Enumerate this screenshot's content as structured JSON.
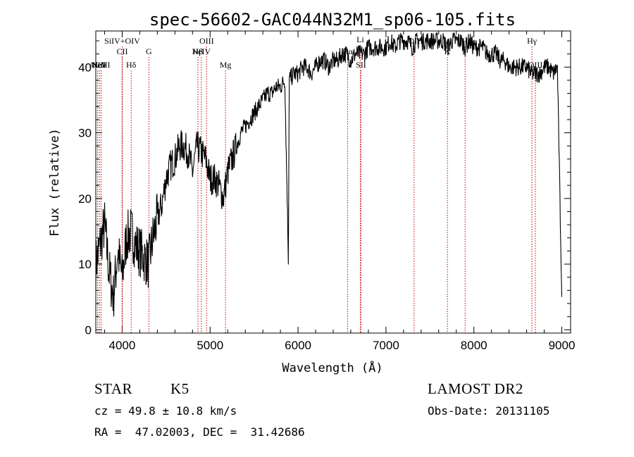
{
  "chart_data": {
    "type": "line",
    "title": "spec-56602-GAC044N32M1_sp06-105.fits",
    "xlabel": "Wavelength (Å)",
    "ylabel": "Flux (relative)",
    "xlim": [
      3700,
      9100
    ],
    "ylim": [
      -0.5,
      45.5
    ],
    "x_ticks": [
      4000,
      5000,
      6000,
      7000,
      8000,
      9000
    ],
    "y_ticks": [
      0,
      10,
      20,
      30,
      40
    ],
    "grid": false,
    "series": [
      {
        "x": [
          3700,
          3750,
          3800,
          3850,
          3900,
          3950,
          4000,
          4050,
          4100,
          4150,
          4200,
          4250,
          4300,
          4350,
          4400,
          4450,
          4500,
          4550,
          4600,
          4650,
          4700,
          4750,
          4800,
          4850,
          4900,
          4950,
          5000,
          5050,
          5100,
          5150,
          5200,
          5250,
          5300,
          5350,
          5400,
          5450,
          5500,
          5550,
          5600,
          5650,
          5700,
          5750,
          5800,
          5850,
          5890,
          5900,
          5950,
          6000,
          6050,
          6100,
          6150,
          6200,
          6250,
          6300,
          6350,
          6400,
          6450,
          6500,
          6550,
          6600,
          6650,
          6700,
          6750,
          6800,
          6850,
          6900,
          6950,
          7000,
          7050,
          7100,
          7150,
          7200,
          7250,
          7300,
          7350,
          7400,
          7450,
          7500,
          7550,
          7600,
          7650,
          7700,
          7750,
          7800,
          7850,
          7900,
          7950,
          8000,
          8050,
          8100,
          8150,
          8200,
          8250,
          8300,
          8350,
          8400,
          8450,
          8500,
          8550,
          8600,
          8650,
          8700,
          8750,
          8800,
          8850,
          8900,
          8950,
          9000
        ],
        "y": [
          10,
          13,
          16,
          9,
          5,
          12,
          8,
          14,
          15,
          13,
          12,
          11,
          10,
          14,
          17,
          19,
          23,
          25,
          26,
          28,
          28,
          27,
          24,
          28,
          27,
          26,
          23,
          23,
          22,
          20,
          24,
          26,
          28,
          30,
          31,
          32,
          33,
          34,
          35,
          36,
          36,
          37,
          37,
          38,
          11,
          38,
          39,
          39,
          40,
          40,
          39,
          40,
          41,
          41,
          40,
          41,
          41,
          42,
          42,
          41,
          42,
          42,
          42,
          43,
          43,
          43,
          43,
          43,
          44,
          43,
          44,
          44,
          44,
          43,
          44,
          44,
          44,
          44,
          44,
          44,
          44,
          43,
          44,
          44,
          44,
          43,
          44,
          43,
          43,
          43,
          42,
          42,
          42,
          41,
          41,
          40,
          40,
          40,
          40,
          40,
          39,
          39,
          39,
          40,
          40,
          39,
          40,
          5
        ]
      }
    ],
    "lines": [
      {
        "label": "AlIII",
        "x": 3720,
        "row": 3
      },
      {
        "label": "NeV",
        "x": 3740,
        "row": 3
      },
      {
        "label": "NeIII",
        "x": 3760,
        "row": 3
      },
      {
        "label": "SiIV+OIV",
        "x": 4000,
        "row": 1
      },
      {
        "label": "CII",
        "x": 4000,
        "row": 2
      },
      {
        "label": "Hδ",
        "x": 4102,
        "row": 3
      },
      {
        "label": "G",
        "x": 4304,
        "row": 2
      },
      {
        "label": "OIII",
        "x": 4960,
        "row": 1
      },
      {
        "label": "NeIV",
        "x": 4900,
        "row": 2
      },
      {
        "label": "Hβ",
        "x": 4861,
        "row": 2
      },
      {
        "label": "Mg",
        "x": 5175,
        "row": 3
      },
      {
        "label": "Li",
        "x": 6708,
        "row": 0
      },
      {
        "label": "Hα",
        "x": 6563,
        "row": 2
      },
      {
        "label": "SII",
        "x": 6716,
        "row": 3
      },
      {
        "label": "OII",
        "x": 7320,
        "row": 1
      },
      {
        "label": "K",
        "x": 7699,
        "row": 2
      },
      {
        "label": "H",
        "x": 7900,
        "row": 1
      },
      {
        "label": "Hγ",
        "x": 8660,
        "row": 1
      },
      {
        "label": "OIII",
        "x": 8700,
        "row": 3
      }
    ]
  },
  "info": {
    "obj_class": "STAR",
    "subclass": "K5",
    "survey": "LAMOST DR2",
    "cz": "cz = 49.8 ± 10.8 km/s",
    "obs_date": "Obs-Date: 20131105",
    "coords": "RA =  47.02003, DEC =  31.42686"
  }
}
